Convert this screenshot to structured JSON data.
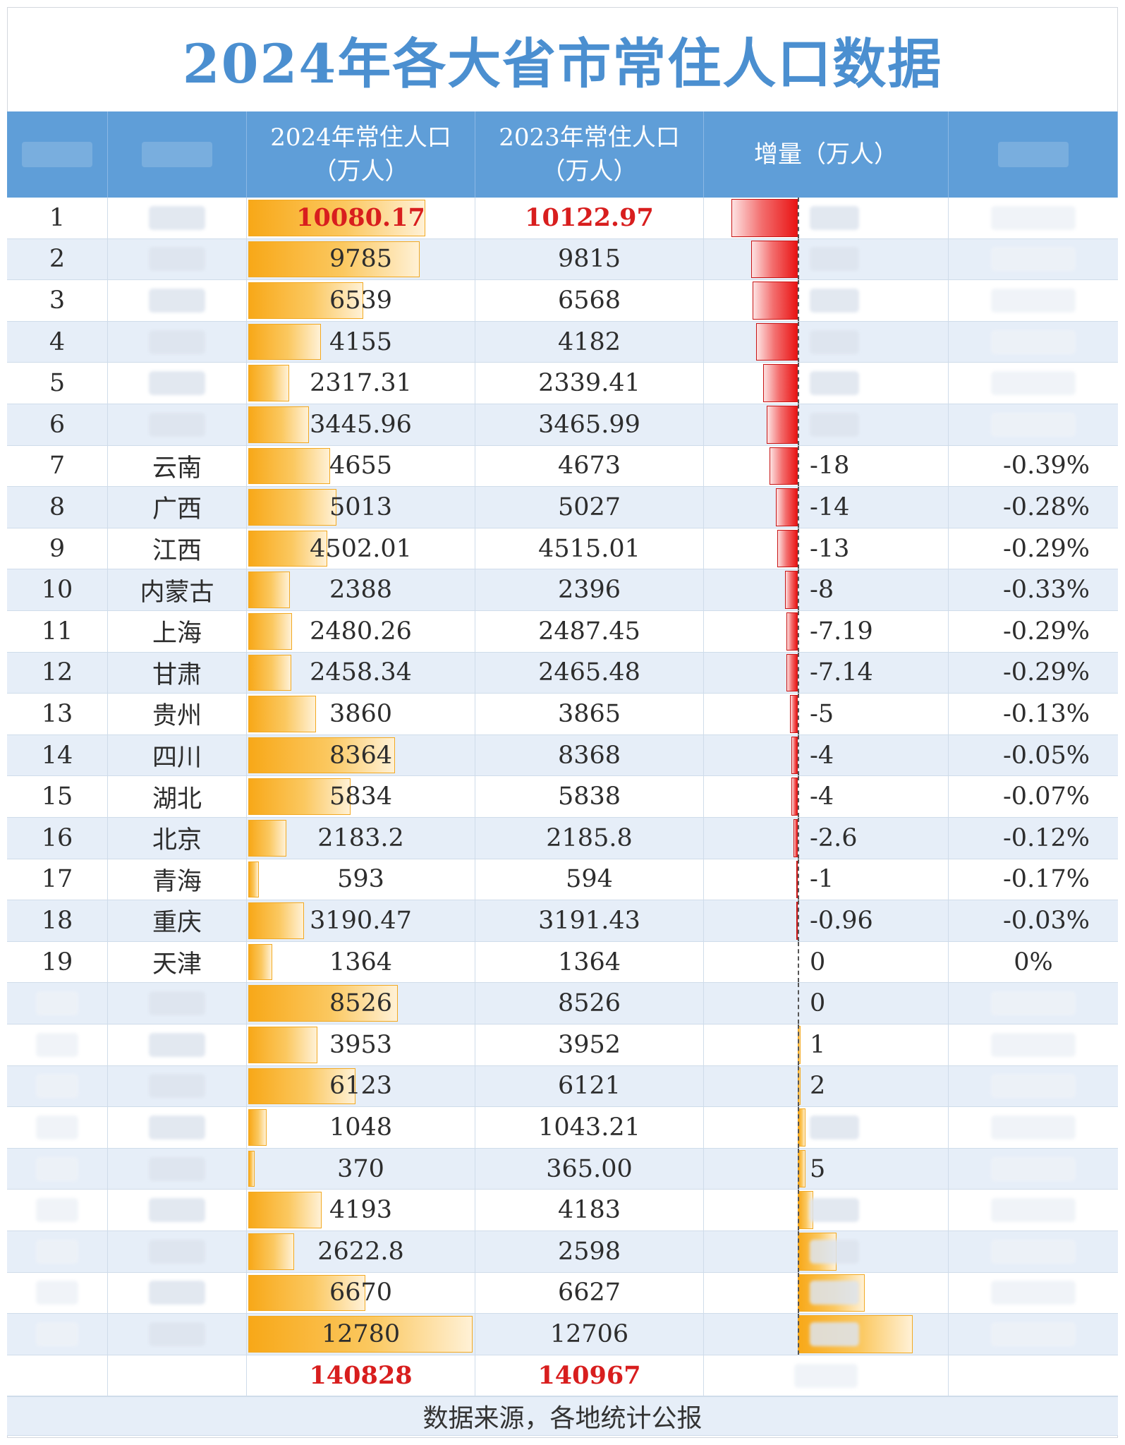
{
  "title": "2024年各大省市常住人口数据",
  "headers": {
    "col2_line1": "2024年常住人口",
    "col2_line2": "（万人）",
    "col3_line1": "2023年常住人口",
    "col3_line2": "（万人）",
    "col4": "增量（万人）"
  },
  "rows": [
    {
      "rank": "1",
      "name": "",
      "pop2024": "10080.17",
      "pop2023": "10122.97",
      "inc": "",
      "pct": "",
      "pop_value": 10080.17,
      "inc_value": -42.8,
      "highlight": true
    },
    {
      "rank": "2",
      "name": "",
      "pop2024": "9785",
      "pop2023": "9815",
      "inc": "",
      "pct": "",
      "pop_value": 9785,
      "inc_value": -30
    },
    {
      "rank": "3",
      "name": "",
      "pop2024": "6539",
      "pop2023": "6568",
      "inc": "",
      "pct": "",
      "pop_value": 6539,
      "inc_value": -29
    },
    {
      "rank": "4",
      "name": "",
      "pop2024": "4155",
      "pop2023": "4182",
      "inc": "",
      "pct": "",
      "pop_value": 4155,
      "inc_value": -27
    },
    {
      "rank": "5",
      "name": "",
      "pop2024": "2317.31",
      "pop2023": "2339.41",
      "inc": "",
      "pct": "",
      "pop_value": 2317.31,
      "inc_value": -22.1
    },
    {
      "rank": "6",
      "name": "",
      "pop2024": "3445.96",
      "pop2023": "3465.99",
      "inc": "",
      "pct": "",
      "pop_value": 3445.96,
      "inc_value": -20.03
    },
    {
      "rank": "7",
      "name": "云南",
      "pop2024": "4655",
      "pop2023": "4673",
      "inc": "-18",
      "pct": "-0.39%",
      "pop_value": 4655,
      "inc_value": -18
    },
    {
      "rank": "8",
      "name": "广西",
      "pop2024": "5013",
      "pop2023": "5027",
      "inc": "-14",
      "pct": "-0.28%",
      "pop_value": 5013,
      "inc_value": -14
    },
    {
      "rank": "9",
      "name": "江西",
      "pop2024": "4502.01",
      "pop2023": "4515.01",
      "inc": "-13",
      "pct": "-0.29%",
      "pop_value": 4502.01,
      "inc_value": -13
    },
    {
      "rank": "10",
      "name": "内蒙古",
      "pop2024": "2388",
      "pop2023": "2396",
      "inc": "-8",
      "pct": "-0.33%",
      "pop_value": 2388,
      "inc_value": -8
    },
    {
      "rank": "11",
      "name": "上海",
      "pop2024": "2480.26",
      "pop2023": "2487.45",
      "inc": "-7.19",
      "pct": "-0.29%",
      "pop_value": 2480.26,
      "inc_value": -7.19
    },
    {
      "rank": "12",
      "name": "甘肃",
      "pop2024": "2458.34",
      "pop2023": "2465.48",
      "inc": "-7.14",
      "pct": "-0.29%",
      "pop_value": 2458.34,
      "inc_value": -7.14
    },
    {
      "rank": "13",
      "name": "贵州",
      "pop2024": "3860",
      "pop2023": "3865",
      "inc": "-5",
      "pct": "-0.13%",
      "pop_value": 3860,
      "inc_value": -5
    },
    {
      "rank": "14",
      "name": "四川",
      "pop2024": "8364",
      "pop2023": "8368",
      "inc": "-4",
      "pct": "-0.05%",
      "pop_value": 8364,
      "inc_value": -4
    },
    {
      "rank": "15",
      "name": "湖北",
      "pop2024": "5834",
      "pop2023": "5838",
      "inc": "-4",
      "pct": "-0.07%",
      "pop_value": 5834,
      "inc_value": -4
    },
    {
      "rank": "16",
      "name": "北京",
      "pop2024": "2183.2",
      "pop2023": "2185.8",
      "inc": "-2.6",
      "pct": "-0.12%",
      "pop_value": 2183.2,
      "inc_value": -2.6
    },
    {
      "rank": "17",
      "name": "青海",
      "pop2024": "593",
      "pop2023": "594",
      "inc": "-1",
      "pct": "-0.17%",
      "pop_value": 593,
      "inc_value": -1
    },
    {
      "rank": "18",
      "name": "重庆",
      "pop2024": "3190.47",
      "pop2023": "3191.43",
      "inc": "-0.96",
      "pct": "-0.03%",
      "pop_value": 3190.47,
      "inc_value": -0.96
    },
    {
      "rank": "19",
      "name": "天津",
      "pop2024": "1364",
      "pop2023": "1364",
      "inc": "0",
      "pct": "0%",
      "pop_value": 1364,
      "inc_value": 0
    },
    {
      "rank": "",
      "name": "",
      "pop2024": "8526",
      "pop2023": "8526",
      "inc": "0",
      "pct": "",
      "pop_value": 8526,
      "inc_value": 0
    },
    {
      "rank": "",
      "name": "",
      "pop2024": "3953",
      "pop2023": "3952",
      "inc": "1",
      "pct": "",
      "pop_value": 3953,
      "inc_value": 1
    },
    {
      "rank": "",
      "name": "",
      "pop2024": "6123",
      "pop2023": "6121",
      "inc": "2",
      "pct": "",
      "pop_value": 6123,
      "inc_value": 2
    },
    {
      "rank": "",
      "name": "",
      "pop2024": "1048",
      "pop2023": "1043.21",
      "inc": "",
      "pct": "",
      "pop_value": 1048,
      "inc_value": 4.79
    },
    {
      "rank": "",
      "name": "",
      "pop2024": "370",
      "pop2023": "365.00",
      "inc": "5",
      "pct": "",
      "pop_value": 370,
      "inc_value": 5
    },
    {
      "rank": "",
      "name": "",
      "pop2024": "4193",
      "pop2023": "4183",
      "inc": "",
      "pct": "",
      "pop_value": 4193,
      "inc_value": 10
    },
    {
      "rank": "",
      "name": "",
      "pop2024": "2622.8",
      "pop2023": "2598",
      "inc": "",
      "pct": "",
      "pop_value": 2622.8,
      "inc_value": 24.8
    },
    {
      "rank": "",
      "name": "",
      "pop2024": "6670",
      "pop2023": "6627",
      "inc": "",
      "pct": "",
      "pop_value": 6670,
      "inc_value": 43
    },
    {
      "rank": "",
      "name": "",
      "pop2024": "12780",
      "pop2023": "12706",
      "inc": "",
      "pct": "",
      "pop_value": 12780,
      "inc_value": 74
    }
  ],
  "totals": {
    "pop2024": "140828",
    "pop2023": "140967"
  },
  "footer": "数据来源，各地统计公报",
  "colors": {
    "header": "#5f9ed8",
    "title": "#4b8fd0",
    "highlight": "#d81e1e",
    "bar": "#f8a818",
    "neg_bar": "#e91414"
  }
}
